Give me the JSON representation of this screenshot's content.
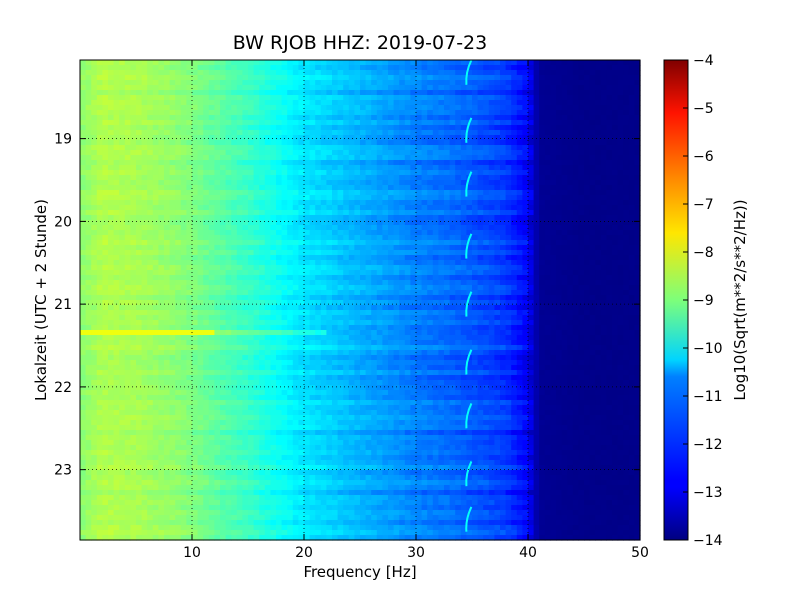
{
  "chart_data": {
    "type": "heatmap",
    "title": "BW RJOB HHZ: 2019-07-23",
    "xlabel": "Frequency [Hz]",
    "ylabel": "Lokalzeit (UTC + 2 Stunde)",
    "xlim": [
      0,
      50
    ],
    "ylim": [
      18.05,
      23.85
    ],
    "y_inverted": true,
    "x_ticks": [
      10,
      20,
      30,
      40,
      50
    ],
    "x_tick_labels": [
      "10",
      "20",
      "30",
      "40",
      "50"
    ],
    "y_ticks": [
      19,
      20,
      21,
      22,
      23
    ],
    "y_tick_labels": [
      "19",
      "20",
      "21",
      "22",
      "23"
    ],
    "grid": true,
    "colormap": "jet",
    "colorbar": {
      "label": "Log10(Sqrt(m**2/s**2/Hz))",
      "range": [
        -14,
        -4
      ],
      "ticks": [
        -4,
        -5,
        -6,
        -7,
        -8,
        -9,
        -10,
        -11,
        -12,
        -13,
        -14
      ],
      "tick_labels": [
        "−4",
        "−5",
        "−6",
        "−7",
        "−8",
        "−9",
        "−10",
        "−11",
        "−12",
        "−13",
        "−14"
      ]
    },
    "spectrum_profile": {
      "frequency_hz": [
        0,
        2,
        5,
        8,
        10,
        12,
        15,
        18,
        20,
        23,
        25,
        28,
        30,
        33,
        35,
        38,
        40,
        41,
        45,
        50
      ],
      "level": [
        -8.9,
        -8.5,
        -8.6,
        -8.8,
        -9.0,
        -9.3,
        -9.7,
        -10.2,
        -10.5,
        -10.8,
        -11.0,
        -11.3,
        -11.5,
        -11.7,
        -11.9,
        -12.2,
        -12.8,
        -13.8,
        -13.9,
        -13.9
      ]
    },
    "features": {
      "strong_line_time": 21.34,
      "strong_line_level": -7.9,
      "tone_freq_hz": 34.5,
      "tone_times": [
        18.2,
        18.9,
        19.55,
        20.3,
        21.0,
        21.7,
        22.35,
        23.05,
        23.6
      ]
    }
  }
}
